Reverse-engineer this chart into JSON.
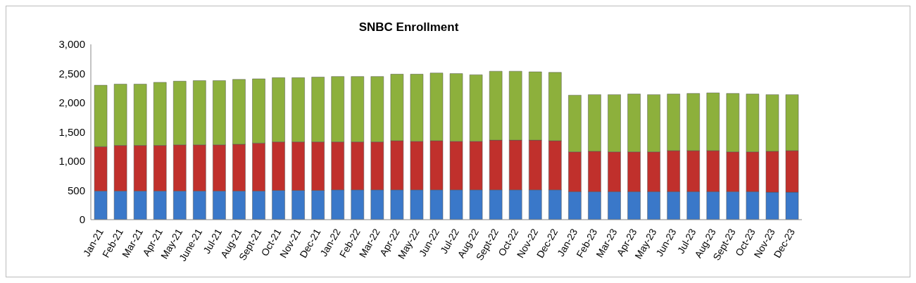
{
  "chart_data": {
    "type": "bar",
    "title": "SNBC Enrollment",
    "stacked": true,
    "grid": false,
    "legend": false,
    "categories": [
      "Jan-21",
      "Feb-21",
      "Mar-21",
      "Apr-21",
      "May-21",
      "June-21",
      "Jul-21",
      "Aug-21",
      "Sept-21",
      "Oct-21",
      "Nov-21",
      "Dec-21",
      "Jan-22",
      "Feb-22",
      "Mar-22",
      "Apr-22",
      "May-22",
      "Jun-22",
      "Jul-22",
      "Aug-22",
      "Sept-22",
      "Oct-22",
      "Nov-22",
      "Dec-22",
      "Jan-23",
      "Feb-23",
      "Mar-23",
      "Apr-23",
      "May-23",
      "Jun-23",
      "Jul-23",
      "Aug-23",
      "Sept-23",
      "Oct-23",
      "Nov-23",
      "Dec-23"
    ],
    "ylim": [
      0,
      3000
    ],
    "yticks": [
      {
        "value": 0,
        "label": "0"
      },
      {
        "value": 500,
        "label": "500"
      },
      {
        "value": 1000,
        "label": "1,000"
      },
      {
        "value": 1500,
        "label": "1,500"
      },
      {
        "value": 2000,
        "label": "2,000"
      },
      {
        "value": 2500,
        "label": "2,500"
      },
      {
        "value": 3000,
        "label": "3,000"
      }
    ],
    "series": [
      {
        "color": "#3a78c9",
        "values": [
          490,
          490,
          490,
          490,
          490,
          490,
          490,
          490,
          490,
          500,
          500,
          500,
          510,
          510,
          510,
          510,
          510,
          510,
          510,
          510,
          510,
          510,
          510,
          510,
          480,
          480,
          480,
          480,
          480,
          480,
          480,
          480,
          480,
          480,
          470,
          470
        ]
      },
      {
        "color": "#c0302c",
        "values": [
          760,
          780,
          780,
          780,
          790,
          790,
          790,
          800,
          820,
          830,
          830,
          830,
          820,
          820,
          820,
          840,
          830,
          840,
          830,
          830,
          850,
          850,
          850,
          840,
          680,
          690,
          680,
          680,
          680,
          700,
          700,
          700,
          680,
          680,
          700,
          710
        ]
      },
      {
        "color": "#8db03c",
        "values": [
          1050,
          1050,
          1050,
          1080,
          1090,
          1100,
          1100,
          1110,
          1100,
          1100,
          1100,
          1110,
          1120,
          1120,
          1120,
          1140,
          1150,
          1160,
          1160,
          1140,
          1180,
          1180,
          1170,
          1170,
          970,
          970,
          980,
          990,
          980,
          970,
          980,
          990,
          1000,
          990,
          970,
          960
        ]
      }
    ]
  }
}
